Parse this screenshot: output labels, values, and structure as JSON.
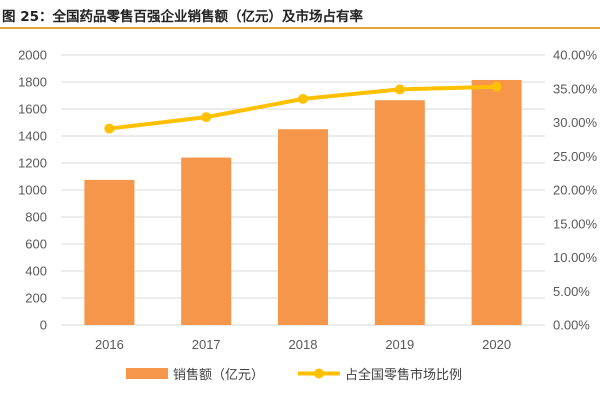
{
  "title": "图 25：全国药品零售百强企业销售额（亿元）及市场占有率",
  "colors": {
    "bar": "#f5964a",
    "line": "#ffc000",
    "accent": "#e8a33d"
  },
  "chart_data": {
    "type": "bar",
    "categories": [
      "2016",
      "2017",
      "2018",
      "2019",
      "2020"
    ],
    "series": [
      {
        "name": "销售额（亿元）",
        "type": "bar",
        "axis": "left",
        "values": [
          1075,
          1240,
          1450,
          1665,
          1815
        ]
      },
      {
        "name": "占全国零售市场比例",
        "type": "line",
        "axis": "right",
        "values": [
          29.1,
          30.8,
          33.5,
          34.9,
          35.3
        ]
      }
    ],
    "y_left": {
      "min": 0,
      "max": 2000,
      "ticks": [
        "0",
        "200",
        "400",
        "600",
        "800",
        "1000",
        "1200",
        "1400",
        "1600",
        "1800",
        "2000"
      ]
    },
    "y_right": {
      "min": 0,
      "max": 40,
      "ticks": [
        "0.00%",
        "5.00%",
        "10.00%",
        "15.00%",
        "20.00%",
        "25.00%",
        "30.00%",
        "35.00%",
        "40.00%"
      ]
    },
    "legend_position": "bottom",
    "grid": true
  }
}
